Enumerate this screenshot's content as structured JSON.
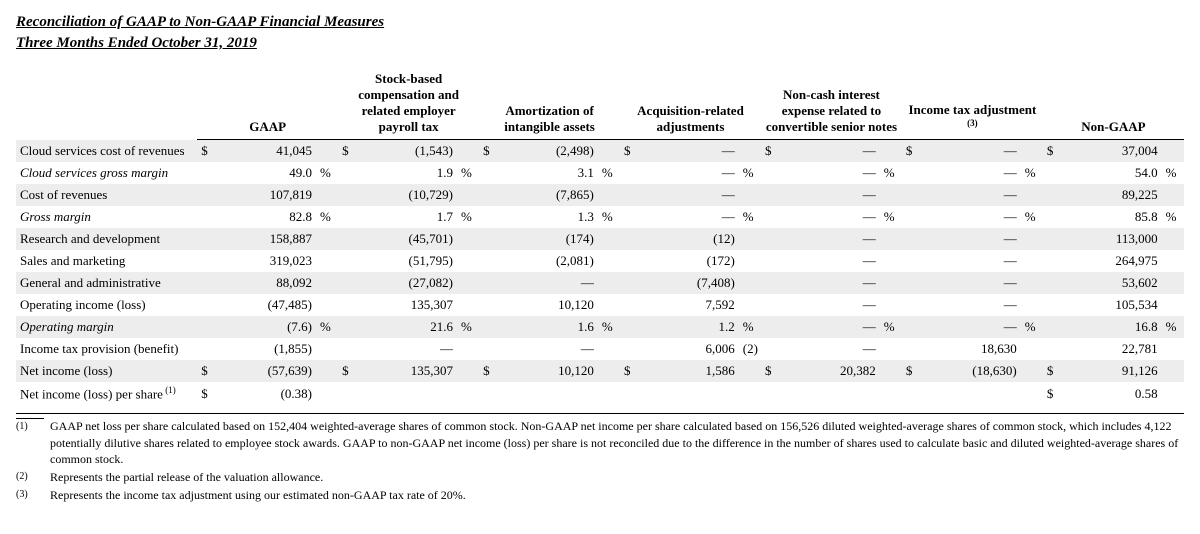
{
  "title": {
    "line1": "Reconciliation of GAAP to Non-GAAP Financial Measures",
    "line2": "Three Months Ended October 31, 2019"
  },
  "headers": {
    "c0": "GAAP",
    "c1": "Stock-based compensation and related employer payroll tax",
    "c2": "Amortization of intangible assets",
    "c3": "Acquisition-related adjustments",
    "c4": "Non-cash interest expense related to convertible senior notes",
    "c5": "Income tax adjustment",
    "c5_sup": "(3)",
    "c6": "Non-GAAP"
  },
  "rows": [
    {
      "label": "Cloud services cost of revenues",
      "shade": true,
      "c0": {
        "s": "$",
        "n": "41,045",
        "t": ""
      },
      "c1": {
        "s": "$",
        "n": "(1,543)",
        "t": ""
      },
      "c2": {
        "s": "$",
        "n": "(2,498)",
        "t": ""
      },
      "c3": {
        "s": "$",
        "n": "—",
        "t": ""
      },
      "c4": {
        "s": "$",
        "n": "—",
        "t": ""
      },
      "c5": {
        "s": "$",
        "n": "—",
        "t": ""
      },
      "c6": {
        "s": "$",
        "n": "37,004",
        "t": ""
      }
    },
    {
      "label": "Cloud services gross margin",
      "italic": true,
      "c0": {
        "s": "",
        "n": "49.0",
        "t": "%"
      },
      "c1": {
        "s": "",
        "n": "1.9",
        "t": "%"
      },
      "c2": {
        "s": "",
        "n": "3.1",
        "t": "%"
      },
      "c3": {
        "s": "",
        "n": "—",
        "t": "%"
      },
      "c4": {
        "s": "",
        "n": "—",
        "t": "%"
      },
      "c5": {
        "s": "",
        "n": "—",
        "t": "%"
      },
      "c6": {
        "s": "",
        "n": "54.0",
        "t": "%"
      }
    },
    {
      "label": "Cost of revenues",
      "shade": true,
      "c0": {
        "s": "",
        "n": "107,819",
        "t": ""
      },
      "c1": {
        "s": "",
        "n": "(10,729)",
        "t": ""
      },
      "c2": {
        "s": "",
        "n": "(7,865)",
        "t": ""
      },
      "c3": {
        "s": "",
        "n": "—",
        "t": ""
      },
      "c4": {
        "s": "",
        "n": "—",
        "t": ""
      },
      "c5": {
        "s": "",
        "n": "—",
        "t": ""
      },
      "c6": {
        "s": "",
        "n": "89,225",
        "t": ""
      }
    },
    {
      "label": "Gross margin",
      "italic": true,
      "c0": {
        "s": "",
        "n": "82.8",
        "t": "%"
      },
      "c1": {
        "s": "",
        "n": "1.7",
        "t": "%"
      },
      "c2": {
        "s": "",
        "n": "1.3",
        "t": "%"
      },
      "c3": {
        "s": "",
        "n": "—",
        "t": "%"
      },
      "c4": {
        "s": "",
        "n": "—",
        "t": "%"
      },
      "c5": {
        "s": "",
        "n": "—",
        "t": "%"
      },
      "c6": {
        "s": "",
        "n": "85.8",
        "t": "%"
      }
    },
    {
      "label": "Research and development",
      "shade": true,
      "c0": {
        "s": "",
        "n": "158,887",
        "t": ""
      },
      "c1": {
        "s": "",
        "n": "(45,701)",
        "t": ""
      },
      "c2": {
        "s": "",
        "n": "(174)",
        "t": ""
      },
      "c3": {
        "s": "",
        "n": "(12)",
        "t": ""
      },
      "c4": {
        "s": "",
        "n": "—",
        "t": ""
      },
      "c5": {
        "s": "",
        "n": "—",
        "t": ""
      },
      "c6": {
        "s": "",
        "n": "113,000",
        "t": ""
      }
    },
    {
      "label": "Sales and marketing",
      "c0": {
        "s": "",
        "n": "319,023",
        "t": ""
      },
      "c1": {
        "s": "",
        "n": "(51,795)",
        "t": ""
      },
      "c2": {
        "s": "",
        "n": "(2,081)",
        "t": ""
      },
      "c3": {
        "s": "",
        "n": "(172)",
        "t": ""
      },
      "c4": {
        "s": "",
        "n": "—",
        "t": ""
      },
      "c5": {
        "s": "",
        "n": "—",
        "t": ""
      },
      "c6": {
        "s": "",
        "n": "264,975",
        "t": ""
      }
    },
    {
      "label": "General and administrative",
      "shade": true,
      "c0": {
        "s": "",
        "n": "88,092",
        "t": ""
      },
      "c1": {
        "s": "",
        "n": "(27,082)",
        "t": ""
      },
      "c2": {
        "s": "",
        "n": "—",
        "t": ""
      },
      "c3": {
        "s": "",
        "n": "(7,408)",
        "t": ""
      },
      "c4": {
        "s": "",
        "n": "—",
        "t": ""
      },
      "c5": {
        "s": "",
        "n": "—",
        "t": ""
      },
      "c6": {
        "s": "",
        "n": "53,602",
        "t": ""
      }
    },
    {
      "label": "Operating income (loss)",
      "c0": {
        "s": "",
        "n": "(47,485)",
        "t": ""
      },
      "c1": {
        "s": "",
        "n": "135,307",
        "t": ""
      },
      "c2": {
        "s": "",
        "n": "10,120",
        "t": ""
      },
      "c3": {
        "s": "",
        "n": "7,592",
        "t": ""
      },
      "c4": {
        "s": "",
        "n": "—",
        "t": ""
      },
      "c5": {
        "s": "",
        "n": "—",
        "t": ""
      },
      "c6": {
        "s": "",
        "n": "105,534",
        "t": ""
      }
    },
    {
      "label": "Operating margin",
      "shade": true,
      "italic": true,
      "c0": {
        "s": "",
        "n": "(7.6)",
        "t": "%"
      },
      "c1": {
        "s": "",
        "n": "21.6",
        "t": "%"
      },
      "c2": {
        "s": "",
        "n": "1.6",
        "t": "%"
      },
      "c3": {
        "s": "",
        "n": "1.2",
        "t": "%"
      },
      "c4": {
        "s": "",
        "n": "—",
        "t": "%"
      },
      "c5": {
        "s": "",
        "n": "—",
        "t": "%"
      },
      "c6": {
        "s": "",
        "n": "16.8",
        "t": "%"
      }
    },
    {
      "label": "Income tax provision (benefit)",
      "c0": {
        "s": "",
        "n": "(1,855)",
        "t": ""
      },
      "c1": {
        "s": "",
        "n": "—",
        "t": ""
      },
      "c2": {
        "s": "",
        "n": "—",
        "t": ""
      },
      "c3": {
        "s": "",
        "n": "6,006",
        "t": "(2)"
      },
      "c4": {
        "s": "",
        "n": "—",
        "t": ""
      },
      "c5": {
        "s": "",
        "n": "18,630",
        "t": ""
      },
      "c6": {
        "s": "",
        "n": "22,781",
        "t": ""
      }
    },
    {
      "label": "Net income (loss)",
      "shade": true,
      "c0": {
        "s": "$",
        "n": "(57,639)",
        "t": ""
      },
      "c1": {
        "s": "$",
        "n": "135,307",
        "t": ""
      },
      "c2": {
        "s": "$",
        "n": "10,120",
        "t": ""
      },
      "c3": {
        "s": "$",
        "n": "1,586",
        "t": ""
      },
      "c4": {
        "s": "$",
        "n": "20,382",
        "t": ""
      },
      "c5": {
        "s": "$",
        "n": "(18,630)",
        "t": ""
      },
      "c6": {
        "s": "$",
        "n": "91,126",
        "t": ""
      }
    },
    {
      "label": "Net income (loss) per share",
      "label_sup": "(1)",
      "c0": {
        "s": "$",
        "n": "(0.38)",
        "t": ""
      },
      "c1": {
        "s": "",
        "n": "",
        "t": ""
      },
      "c2": {
        "s": "",
        "n": "",
        "t": ""
      },
      "c3": {
        "s": "",
        "n": "",
        "t": ""
      },
      "c4": {
        "s": "",
        "n": "",
        "t": ""
      },
      "c5": {
        "s": "",
        "n": "",
        "t": ""
      },
      "c6": {
        "s": "$",
        "n": "0.58",
        "t": ""
      }
    }
  ],
  "footnotes": [
    {
      "num": "(1)",
      "text": "GAAP net loss per share calculated based on 152,404 weighted-average shares of common stock. Non-GAAP net income per share calculated based on 156,526 diluted weighted-average shares of common stock, which includes 4,122 potentially dilutive shares related to employee stock awards. GAAP to non-GAAP net income (loss) per share is not reconciled due to the difference in the number of shares used to calculate basic and diluted weighted-average shares of common stock."
    },
    {
      "num": "(2)",
      "text": "Represents the partial release of the valuation allowance."
    },
    {
      "num": "(3)",
      "text": "Represents the income tax adjustment using our estimated non-GAAP tax rate of 20%."
    }
  ]
}
